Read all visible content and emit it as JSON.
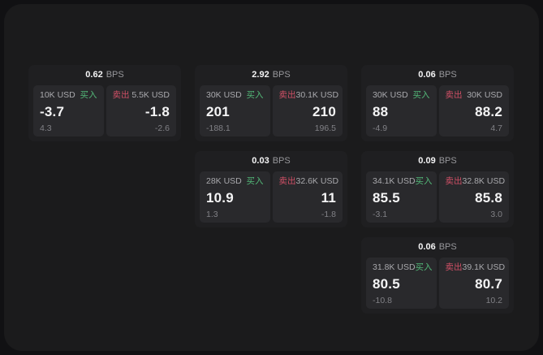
{
  "labels": {
    "bps_unit": "BPS",
    "buy": "买入",
    "sell": "卖出"
  },
  "colors": {
    "page_bg": "#111113",
    "surface_bg": "#1b1b1c",
    "card_bg": "#1f1f21",
    "panel_bg": "#29292c",
    "buy_color": "#53b878",
    "sell_color": "#d05066",
    "value_color": "#f4f4f5",
    "label_color": "#a9a9ad",
    "muted_color": "#818186",
    "unit_color": "#97979b"
  },
  "cards": [
    {
      "row": 1,
      "col": 1,
      "bps": "0.62",
      "buy": {
        "size": "10K USD",
        "price": "-3.7",
        "delta": "4.3"
      },
      "sell": {
        "size": "5.5K USD",
        "price": "-1.8",
        "delta": "-2.6"
      }
    },
    {
      "row": 1,
      "col": 2,
      "bps": "2.92",
      "buy": {
        "size": "30K USD",
        "price": "201",
        "delta": "-188.1"
      },
      "sell": {
        "size": "30.1K USD",
        "price": "210",
        "delta": "196.5"
      }
    },
    {
      "row": 1,
      "col": 3,
      "bps": "0.06",
      "buy": {
        "size": "30K USD",
        "price": "88",
        "delta": "-4.9"
      },
      "sell": {
        "size": "30K USD",
        "price": "88.2",
        "delta": "4.7"
      }
    },
    {
      "row": 2,
      "col": 2,
      "bps": "0.03",
      "buy": {
        "size": "28K USD",
        "price": "10.9",
        "delta": "1.3"
      },
      "sell": {
        "size": "32.6K USD",
        "price": "11",
        "delta": "-1.8"
      }
    },
    {
      "row": 2,
      "col": 3,
      "bps": "0.09",
      "buy": {
        "size": "34.1K USD",
        "price": "85.5",
        "delta": "-3.1"
      },
      "sell": {
        "size": "32.8K USD",
        "price": "85.8",
        "delta": "3.0"
      }
    },
    {
      "row": 3,
      "col": 3,
      "bps": "0.06",
      "buy": {
        "size": "31.8K USD",
        "price": "80.5",
        "delta": "-10.8"
      },
      "sell": {
        "size": "39.1K USD",
        "price": "80.7",
        "delta": "10.2"
      }
    }
  ]
}
